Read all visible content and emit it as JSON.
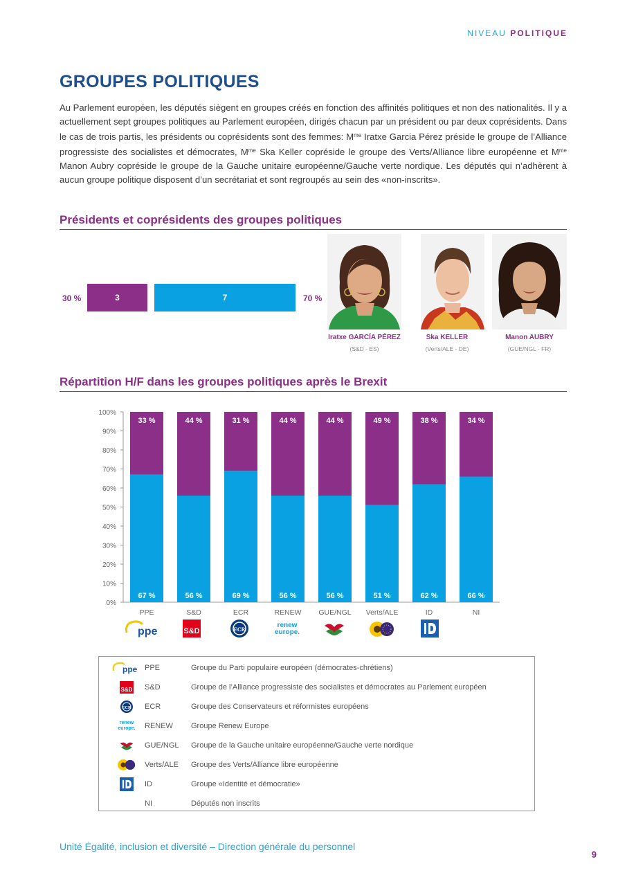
{
  "header": {
    "prefix": "NIVEAU",
    "section": "POLITIQUE"
  },
  "page_title": "GROUPES POLITIQUES",
  "intro": {
    "p1": "Au Parlement européen, les députés siègent en groupes créés en fonction des affinités politiques et non des nationalités. Il y a actuellement sept groupes politiques au Parlement européen, dirigés chacun par un président ou par deux coprésidents. Dans le cas de trois partis, les présidents ou coprésidents sont des femmes: M",
    "me1": "me",
    "p2": " Iratxe Garcia Pérez préside le groupe de l’Alliance progressiste des socialistes et démocrates, M",
    "me2": "me",
    "p3": " Ska Keller copréside le groupe des Verts/Alliance libre européenne et M",
    "me3": "me",
    "p4": " Manon Aubry copréside le groupe de la Gauche unitaire européenne/Gauche verte nordique. Les députés qui n’adhèrent à aucun groupe politique disposent d’un secrétariat et sont regroupés au sein des «non-inscrits»."
  },
  "presidents": {
    "title": "Présidents et coprésidents des groupes politiques",
    "women_pct": "30 %",
    "women_count": "3",
    "men_count": "7",
    "men_pct": "70 %",
    "colors": {
      "women": "#8b2f88",
      "men": "#0aa1e2"
    },
    "people": [
      {
        "name": "Iratxe GARCÍA PÉREZ",
        "group": "(S&D - ES)"
      },
      {
        "name": "Ska KELLER",
        "group": "(Verts/ALE - DE)"
      },
      {
        "name": "Manon AUBRY",
        "group": "(GUE/NGL - FR)"
      }
    ]
  },
  "distribution": {
    "title": "Répartition H/F dans les groupes politiques après le Brexit"
  },
  "chart_data": {
    "type": "bar",
    "stacked": true,
    "categories": [
      "PPE",
      "S&D",
      "ECR",
      "RENEW",
      "GUE/NGL",
      "Verts/ALE",
      "ID",
      "NI"
    ],
    "series": [
      {
        "values": [
          67,
          56,
          69,
          56,
          56,
          51,
          62,
          66
        ],
        "labels": [
          "67 %",
          "56 %",
          "69 %",
          "56 %",
          "56 %",
          "51 %",
          "62 %",
          "66 %"
        ],
        "color": "#0aa1e2"
      },
      {
        "values": [
          33,
          44,
          31,
          44,
          44,
          49,
          38,
          34
        ],
        "labels": [
          "33 %",
          "44 %",
          "31 %",
          "44 %",
          "44 %",
          "49 %",
          "38 %",
          "34 %"
        ],
        "color": "#8b2f88"
      }
    ],
    "yticks": [
      "0%",
      "10%",
      "20%",
      "30%",
      "40%",
      "50%",
      "60%",
      "70%",
      "80%",
      "90%",
      "100%"
    ],
    "ylim": [
      0,
      100
    ],
    "grid": false
  },
  "logos": {
    "ppe_small": "group",
    "ppe": "ppe",
    "sd": "S&D",
    "ecr": "ECR",
    "renew_line1": "renew",
    "renew_line2": "europe."
  },
  "legend": [
    {
      "icon": "ppe-logo",
      "abbr": "PPE",
      "desc": "Groupe du Parti populaire européen (démocrates-chrétiens)"
    },
    {
      "icon": "sd-logo",
      "abbr": "S&D",
      "desc": "Groupe de l’Alliance progressiste des socialistes et démocrates au Parlement européen"
    },
    {
      "icon": "ecr-logo",
      "abbr": "ECR",
      "desc": "Groupe des Conservateurs et réformistes européens"
    },
    {
      "icon": "renew-logo",
      "abbr": "RENEW",
      "desc": "Groupe Renew Europe"
    },
    {
      "icon": "gue-ngl-logo",
      "abbr": "GUE/NGL",
      "desc": "Groupe de la Gauche unitaire européenne/Gauche verte nordique"
    },
    {
      "icon": "verts-ale-logo",
      "abbr": "Verts/ALE",
      "desc": "Groupe des Verts/Alliance libre européenne"
    },
    {
      "icon": "id-logo",
      "abbr": "ID",
      "desc": "Groupe «Identité et démocratie»"
    },
    {
      "icon": "",
      "abbr": "NI",
      "desc": "Députés non inscrits"
    }
  ],
  "footer": "Unité Égalité, inclusion et diversité  – Direction générale du personnel",
  "page_number": "9"
}
